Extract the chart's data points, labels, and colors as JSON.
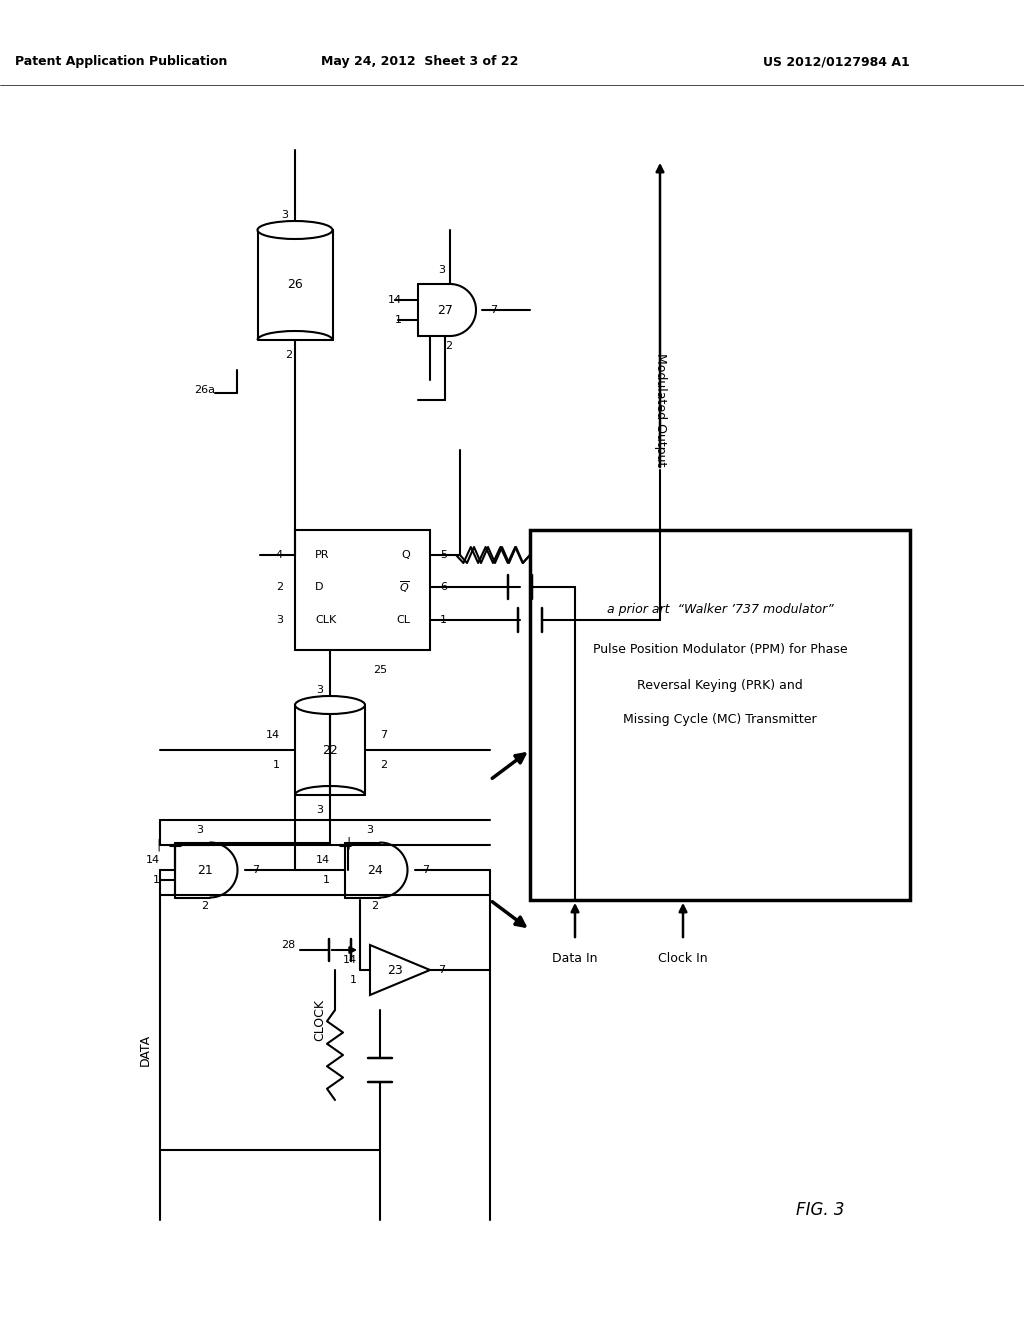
{
  "title_left": "Patent Application Publication",
  "title_mid": "May 24, 2012  Sheet 3 of 22",
  "title_right": "US 2012/0127984 A1",
  "fig_label": "FIG. 3",
  "box_text_line1": "a prior art  “Walker ’737 modulator”",
  "box_text_line2": "Pulse Position Modulator (PPM) for Phase",
  "box_text_line3": "Reversal Keying (PRK) and",
  "box_text_line4": "Missing Cycle (MC) Transmitter",
  "modulated_output": "Modulated Output",
  "data_in": "Data In",
  "clock_in": "Clock In",
  "data_label": "DATA",
  "clock_label": "CLOCK",
  "background": "#ffffff",
  "line_color": "#000000"
}
